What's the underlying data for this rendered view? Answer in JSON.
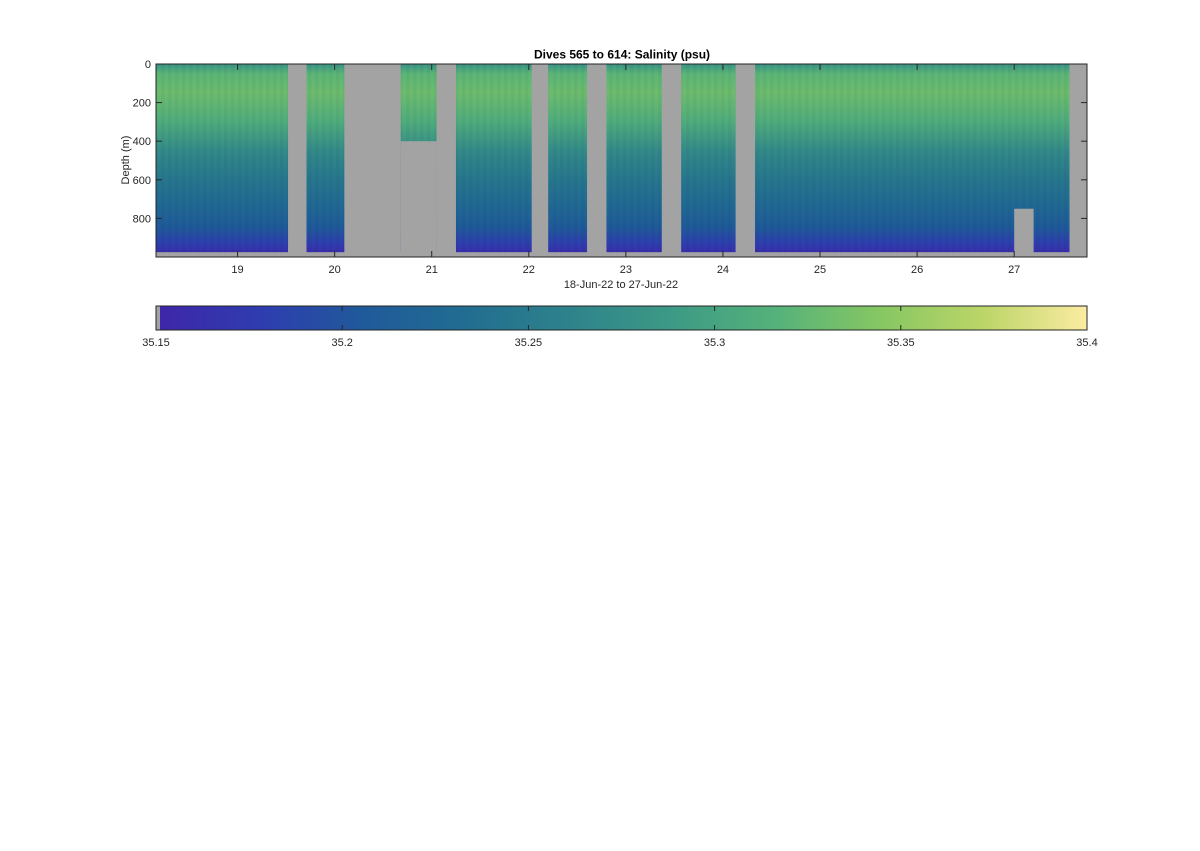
{
  "chart_data": [
    {
      "type": "heatmap",
      "title": "Dives 565 to 614: Salinity (psu)",
      "xlabel": "18-Jun-22 to 27-Jun-22",
      "ylabel": "Depth (m)",
      "x_unit": "day of June 2022",
      "xlim": [
        18.16,
        27.75
      ],
      "ylim": [
        1000,
        0
      ],
      "y_reversed": true,
      "xticks": [
        19,
        20,
        21,
        22,
        23,
        24,
        25,
        26,
        27
      ],
      "xtick_labels": [
        "19",
        "20",
        "21",
        "22",
        "23",
        "24",
        "25",
        "26",
        "27"
      ],
      "yticks": [
        0,
        200,
        400,
        600,
        800
      ],
      "ytick_labels": [
        "0",
        "200",
        "400",
        "600",
        "800"
      ],
      "no_data_color": "#a3a3a3",
      "data_gaps": [
        {
          "x_start": 19.52,
          "x_end": 19.71,
          "depth_start": 0,
          "depth_end": 1000
        },
        {
          "x_start": 20.1,
          "x_end": 20.68,
          "depth_start": 0,
          "depth_end": 1000
        },
        {
          "x_start": 20.68,
          "x_end": 21.05,
          "depth_start": 400,
          "depth_end": 1000
        },
        {
          "x_start": 21.05,
          "x_end": 21.25,
          "depth_start": 0,
          "depth_end": 1000
        },
        {
          "x_start": 22.03,
          "x_end": 22.2,
          "depth_start": 0,
          "depth_end": 1000
        },
        {
          "x_start": 22.6,
          "x_end": 22.8,
          "depth_start": 0,
          "depth_end": 1000
        },
        {
          "x_start": 23.37,
          "x_end": 23.57,
          "depth_start": 0,
          "depth_end": 1000
        },
        {
          "x_start": 24.13,
          "x_end": 24.33,
          "depth_start": 0,
          "depth_end": 1000
        },
        {
          "x_start": 27.0,
          "x_end": 27.2,
          "depth_start": 750,
          "depth_end": 1000
        },
        {
          "x_start": 27.57,
          "x_end": 27.75,
          "depth_start": 0,
          "depth_end": 1000
        }
      ],
      "profile_bottom_depth_m": 975,
      "salinity_profile": [
        {
          "depth": 0,
          "salinity": 35.28
        },
        {
          "depth": 50,
          "salinity": 35.32
        },
        {
          "depth": 150,
          "salinity": 35.33
        },
        {
          "depth": 300,
          "salinity": 35.31
        },
        {
          "depth": 450,
          "salinity": 35.27
        },
        {
          "depth": 600,
          "salinity": 35.245
        },
        {
          "depth": 750,
          "salinity": 35.225
        },
        {
          "depth": 850,
          "salinity": 35.205
        },
        {
          "depth": 930,
          "salinity": 35.18
        },
        {
          "depth": 975,
          "salinity": 35.16
        }
      ]
    },
    {
      "type": "colorbar",
      "range": [
        35.15,
        35.4
      ],
      "ticks": [
        35.15,
        35.2,
        35.25,
        35.3,
        35.35,
        35.4
      ],
      "tick_labels": [
        "35.15",
        "35.2",
        "35.25",
        "35.3",
        "35.35",
        "35.4"
      ],
      "colormap": [
        "#3e26a8",
        "#2f3cb0",
        "#1f5a9a",
        "#216d91",
        "#2e838b",
        "#3d9a85",
        "#55b27a",
        "#86c762",
        "#bcd568",
        "#fbeca1"
      ]
    }
  ]
}
